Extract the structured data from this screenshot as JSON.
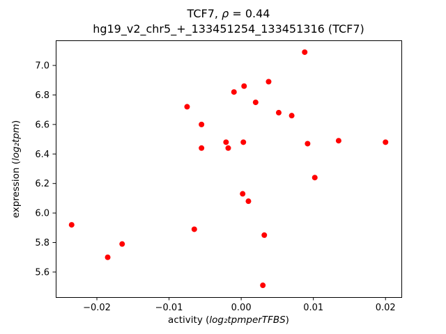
{
  "figure": {
    "title": {
      "prefix": "TCF7, ",
      "math": "ρ",
      "suffix": " = 0.44"
    },
    "subtitle": "hg19_v2_chr5_+_133451254_133451316 (TCF7)",
    "xlabel": {
      "prefix": "activity (",
      "math": "log₂tpmperTFBS",
      "suffix": ")"
    },
    "ylabel": {
      "prefix": "expression (",
      "math": "log₂tpm",
      "suffix": ")"
    }
  },
  "chart_data": {
    "type": "scatter",
    "title": "TCF7, ρ = 0.44",
    "subtitle": "hg19_v2_chr5_+_133451254_133451316 (TCF7)",
    "xlabel": "activity (log₂tpmperTFBS)",
    "ylabel": "expression (log₂tpm)",
    "marker_color": "#ff0000",
    "marker_radius": 4,
    "grid": false,
    "legend": null,
    "xlim": [
      -0.0257,
      0.0222
    ],
    "ylim": [
      5.43,
      7.17
    ],
    "xticks": [
      {
        "v": -0.02,
        "label": "−0.02"
      },
      {
        "v": -0.01,
        "label": "−0.01"
      },
      {
        "v": 0.0,
        "label": "0.00"
      },
      {
        "v": 0.01,
        "label": "0.01"
      },
      {
        "v": 0.02,
        "label": "0.02"
      }
    ],
    "yticks": [
      {
        "v": 5.6,
        "label": "5.6"
      },
      {
        "v": 5.8,
        "label": "5.8"
      },
      {
        "v": 6.0,
        "label": "6.0"
      },
      {
        "v": 6.2,
        "label": "6.2"
      },
      {
        "v": 6.4,
        "label": "6.4"
      },
      {
        "v": 6.6,
        "label": "6.6"
      },
      {
        "v": 6.8,
        "label": "6.8"
      },
      {
        "v": 7.0,
        "label": "7.0"
      }
    ],
    "points": [
      [
        -0.0235,
        5.92
      ],
      [
        -0.0185,
        5.7
      ],
      [
        -0.0165,
        5.79
      ],
      [
        -0.0075,
        6.72
      ],
      [
        -0.0065,
        5.89
      ],
      [
        -0.0055,
        6.6
      ],
      [
        -0.0055,
        6.44
      ],
      [
        -0.0021,
        6.48
      ],
      [
        -0.0018,
        6.44
      ],
      [
        -0.001,
        6.82
      ],
      [
        0.0004,
        6.86
      ],
      [
        0.0003,
        6.48
      ],
      [
        0.0002,
        6.13
      ],
      [
        0.001,
        6.08
      ],
      [
        0.002,
        6.75
      ],
      [
        0.0032,
        5.85
      ],
      [
        0.003,
        5.51
      ],
      [
        0.0038,
        6.89
      ],
      [
        0.0052,
        6.68
      ],
      [
        0.007,
        6.66
      ],
      [
        0.0088,
        7.09
      ],
      [
        0.0092,
        6.47
      ],
      [
        0.0102,
        6.24
      ],
      [
        0.0135,
        6.49
      ],
      [
        0.02,
        6.48
      ]
    ]
  }
}
